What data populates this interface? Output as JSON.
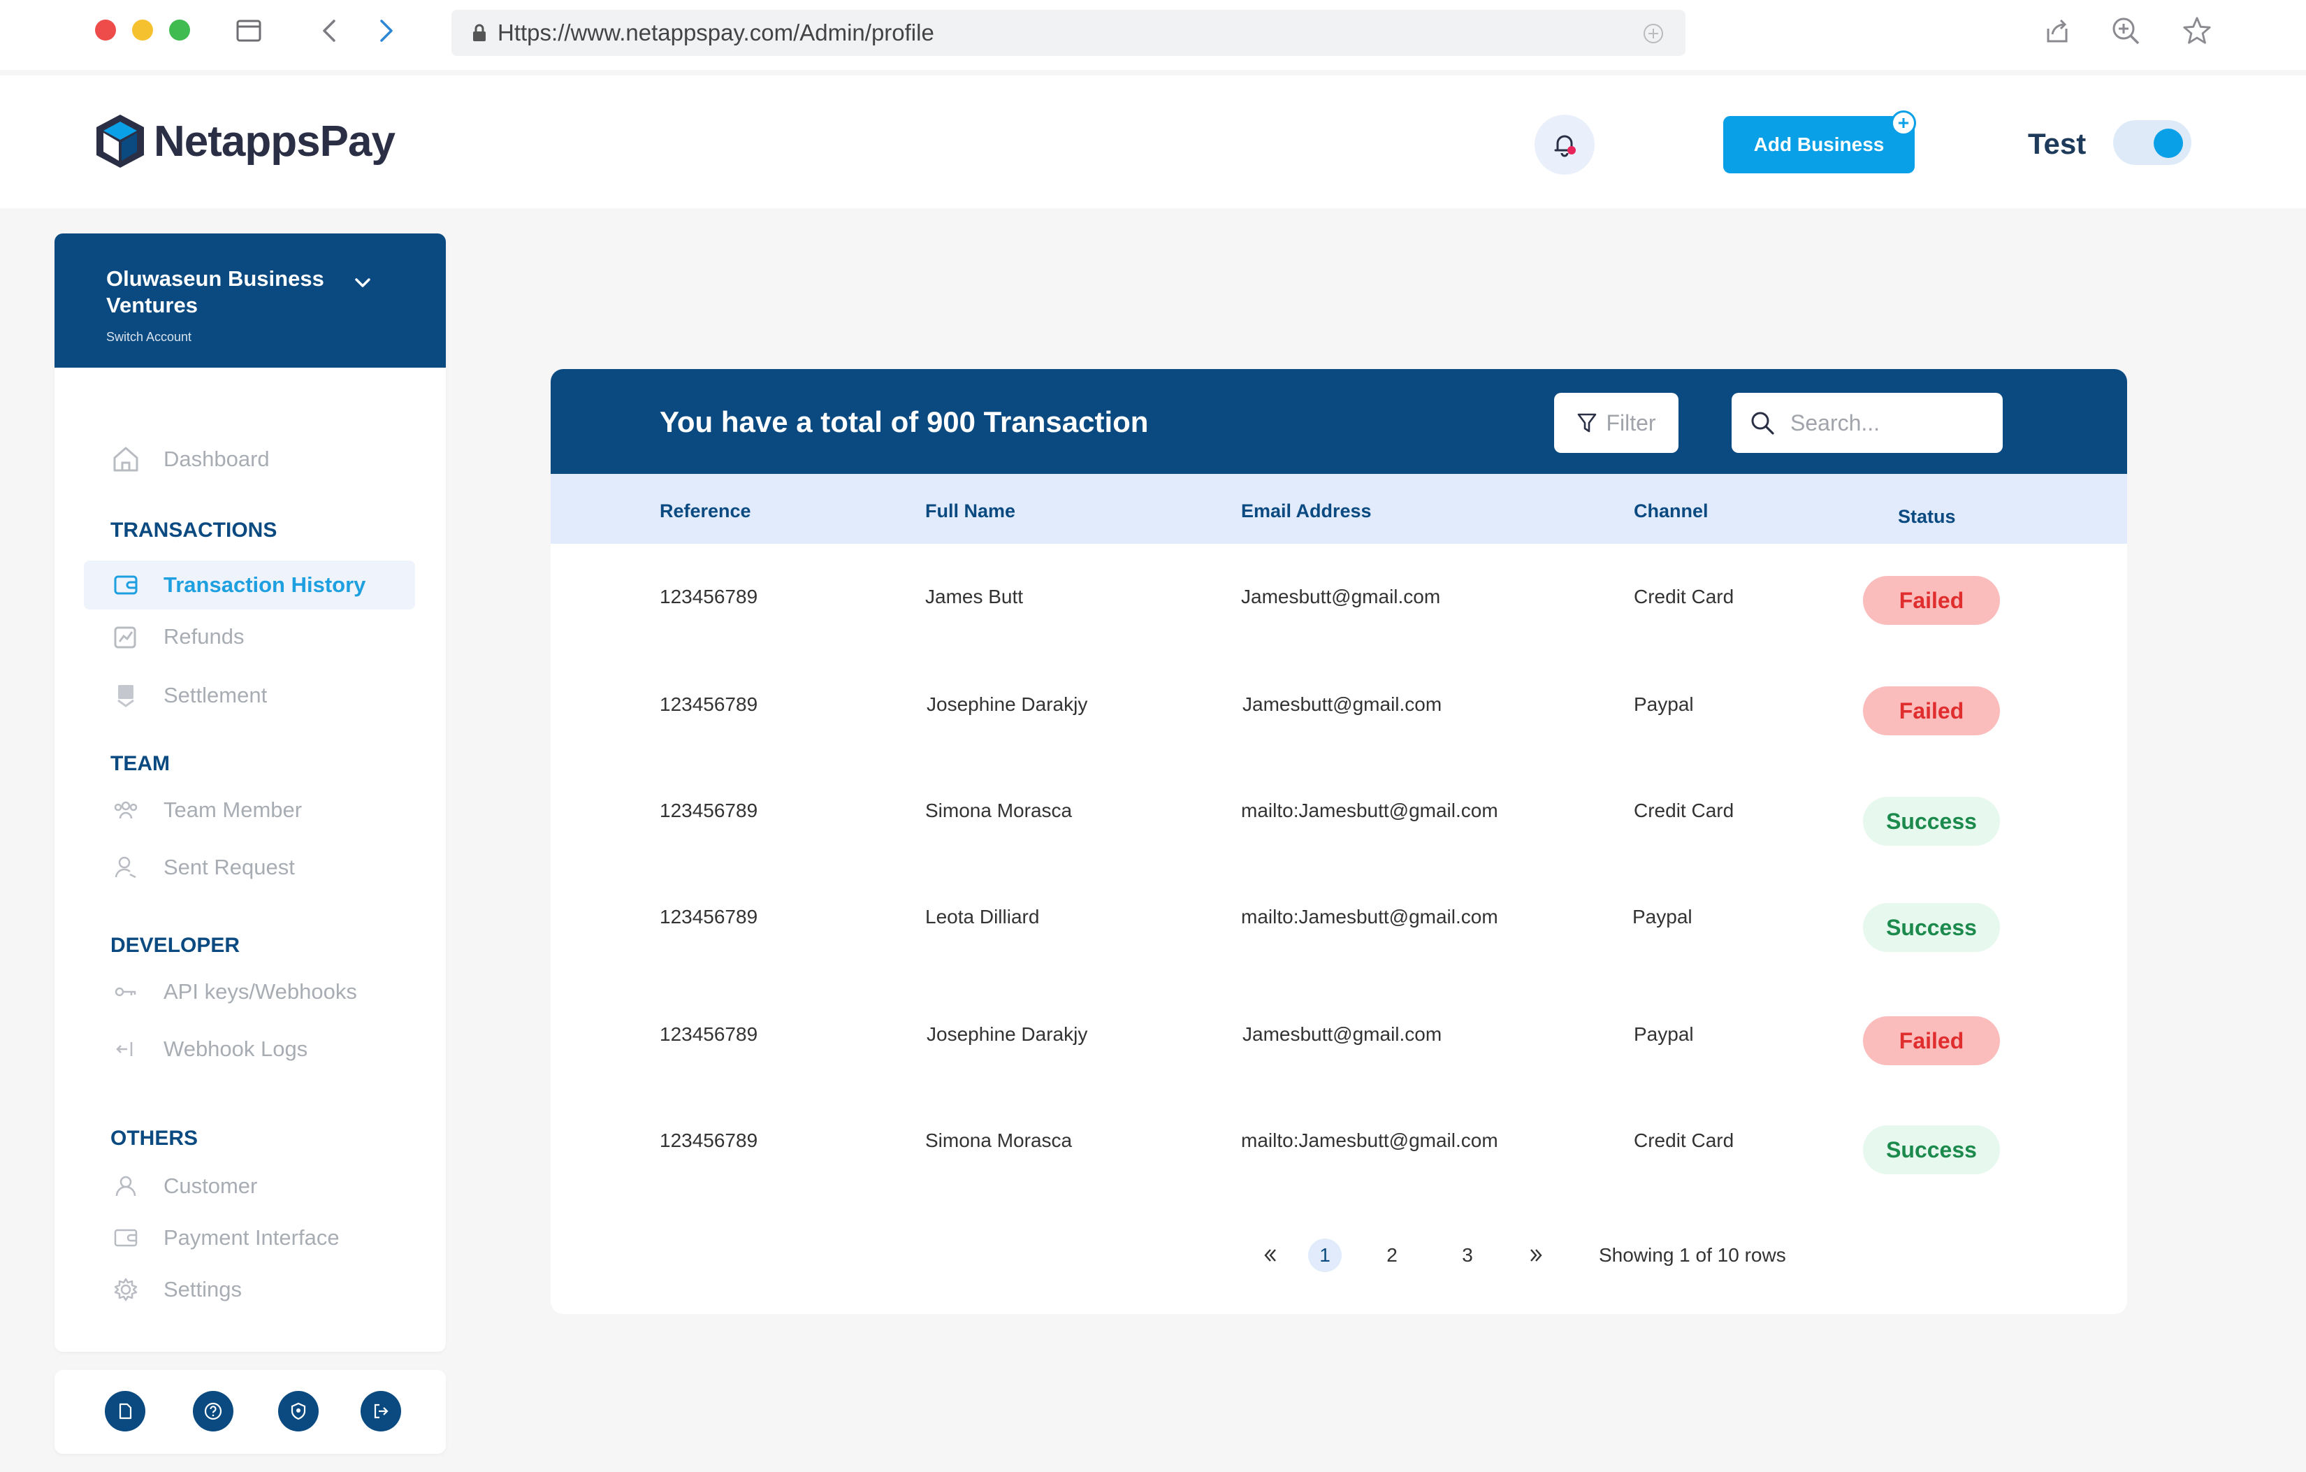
{
  "browser": {
    "url": "Https://www.netappspay.com/Admin/profile"
  },
  "header": {
    "brand": "NetappsPay",
    "add_business_label": "Add Business",
    "test_label": "Test",
    "test_mode_on": true
  },
  "account": {
    "name": "Oluwaseun Business Ventures",
    "switch_label": "Switch Account"
  },
  "sidebar": {
    "dashboard": "Dashboard",
    "sections": {
      "transactions": "TRANSACTIONS",
      "team": "TEAM",
      "developer": "DEVELOPER",
      "others": "OTHERS"
    },
    "items": {
      "transaction_history": "Transaction History",
      "refunds": "Refunds",
      "settlement": "Settlement",
      "team_member": "Team Member",
      "sent_request": "Sent Request",
      "api_keys": "API keys/Webhooks",
      "webhook_logs": "Webhook Logs",
      "customer": "Customer",
      "payment_interface": "Payment Interface",
      "settings": "Settings"
    }
  },
  "card": {
    "title": "You have a total of 900 Transaction",
    "filter_label": "Filter",
    "search_placeholder": "Search..."
  },
  "table": {
    "columns": [
      "Reference",
      "Full Name",
      "Email Address",
      "Channel",
      "Status"
    ],
    "rows": [
      {
        "reference": "123456789",
        "name": "James Butt",
        "email": "Jamesbutt@gmail.com",
        "channel": "Credit Card",
        "status": "Failed"
      },
      {
        "reference": "123456789",
        "name": "Josephine Darakjy",
        "email": "Jamesbutt@gmail.com",
        "channel": "Paypal",
        "status": "Failed"
      },
      {
        "reference": "123456789",
        "name": "Simona Morasca",
        "email": "mailto:Jamesbutt@gmail.com",
        "channel": "Credit Card",
        "status": "Success"
      },
      {
        "reference": "123456789",
        "name": "Leota Dilliard",
        "email": "mailto:Jamesbutt@gmail.com",
        "channel": "Paypal",
        "status": "Success"
      },
      {
        "reference": "123456789",
        "name": "Josephine Darakjy",
        "email": "Jamesbutt@gmail.com",
        "channel": "Paypal",
        "status": "Failed"
      },
      {
        "reference": "123456789",
        "name": "Simona Morasca",
        "email": "mailto:Jamesbutt@gmail.com",
        "channel": "Credit Card",
        "status": "Success"
      }
    ]
  },
  "pagination": {
    "pages": [
      "1",
      "2",
      "3"
    ],
    "current": "1",
    "info": "Showing 1 of 10 rows"
  },
  "colors": {
    "primary": "#0a4a80",
    "accent": "#0aa0e8",
    "failed_bg": "#fbbcbc",
    "failed_text": "#e02d2d",
    "success_bg": "#e7f8ee",
    "success_text": "#1b8a4c"
  }
}
